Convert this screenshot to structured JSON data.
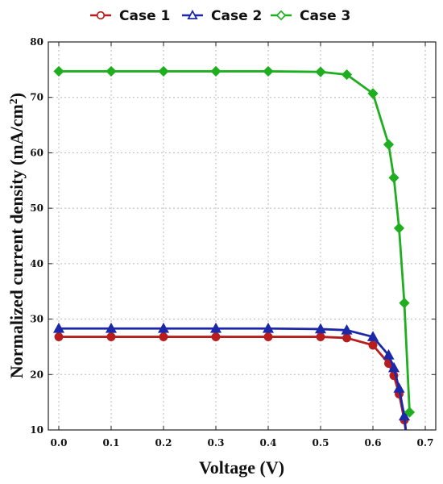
{
  "chart_data": {
    "type": "line",
    "title": "",
    "xlabel": "Voltage (V)",
    "ylabel_main": "Normalized current density (mA/cm",
    "ylabel_sup": "2",
    "ylabel_close": ")",
    "xlim": [
      -0.02,
      0.72
    ],
    "ylim": [
      10,
      80
    ],
    "xticks": [
      "0.0",
      "0.1",
      "0.2",
      "0.3",
      "0.4",
      "0.5",
      "0.6",
      "0.7"
    ],
    "yticks": [
      "10",
      "20",
      "30",
      "40",
      "50",
      "60",
      "70",
      "80"
    ],
    "grid": true,
    "legend_position": "top",
    "series": [
      {
        "name": "Case 1",
        "color": "#b81d1d",
        "marker": "circle",
        "x": [
          0.0,
          0.1,
          0.2,
          0.3,
          0.4,
          0.5,
          0.55,
          0.6,
          0.63,
          0.64,
          0.65,
          0.66,
          0.665
        ],
        "y": [
          26.8,
          26.8,
          26.8,
          26.8,
          26.8,
          26.8,
          26.6,
          25.3,
          22.0,
          19.8,
          16.5,
          11.8,
          8.0
        ]
      },
      {
        "name": "Case 2",
        "color": "#1c28a8",
        "marker": "triangle",
        "x": [
          0.0,
          0.1,
          0.2,
          0.3,
          0.4,
          0.5,
          0.55,
          0.6,
          0.63,
          0.64,
          0.65,
          0.66,
          0.665
        ],
        "y": [
          28.3,
          28.3,
          28.3,
          28.3,
          28.3,
          28.2,
          28.0,
          26.8,
          23.5,
          21.2,
          17.5,
          12.5,
          8.0
        ]
      },
      {
        "name": "Case 3",
        "color": "#1fae1f",
        "marker": "diamond",
        "x": [
          0.0,
          0.1,
          0.2,
          0.3,
          0.4,
          0.5,
          0.55,
          0.6,
          0.63,
          0.64,
          0.65,
          0.66,
          0.67
        ],
        "y": [
          74.7,
          74.7,
          74.7,
          74.7,
          74.7,
          74.6,
          74.1,
          70.7,
          61.5,
          55.5,
          46.4,
          32.9,
          13.2
        ]
      }
    ]
  }
}
